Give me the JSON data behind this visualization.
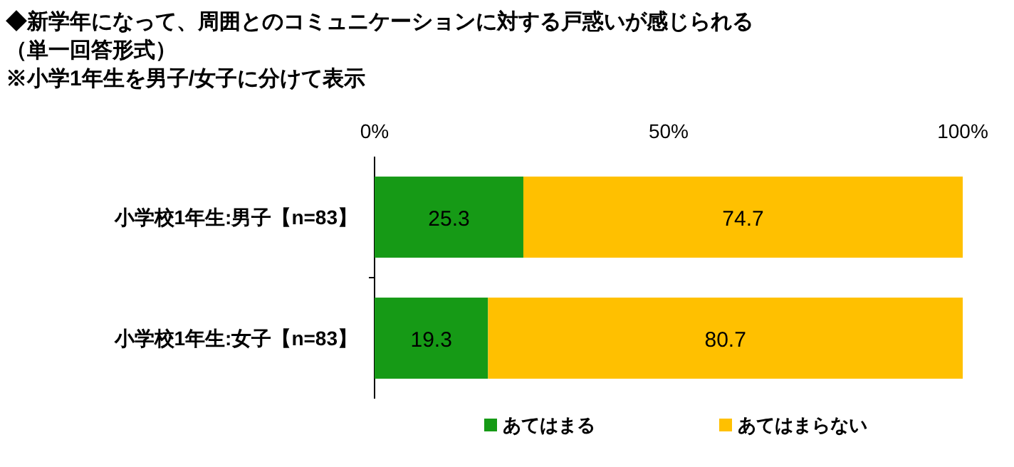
{
  "chart_data": {
    "type": "bar",
    "orientation": "horizontal",
    "stacked": true,
    "title": "◆新学年になって、周囲とのコミュニケーションに対する戸惑いが感じられる",
    "subtitle": "（単一回答形式）\n※小学1年生を男子/女子に分けて表示",
    "categories": [
      "小学校1年生:男子【n=83】",
      "小学校1年生:女子【n=83】"
    ],
    "series": [
      {
        "name": "あてはまる",
        "color": "#169a16",
        "values": [
          25.3,
          19.3
        ]
      },
      {
        "name": "あてはまらない",
        "color": "#ffc000",
        "values": [
          74.7,
          80.7
        ]
      }
    ],
    "xlim": [
      0,
      100
    ],
    "xticks": [
      {
        "value": 0,
        "label": "0%"
      },
      {
        "value": 50,
        "label": "50%"
      },
      {
        "value": 100,
        "label": "100%"
      }
    ],
    "data_labels": true,
    "legend": "bottom",
    "grid": false
  }
}
